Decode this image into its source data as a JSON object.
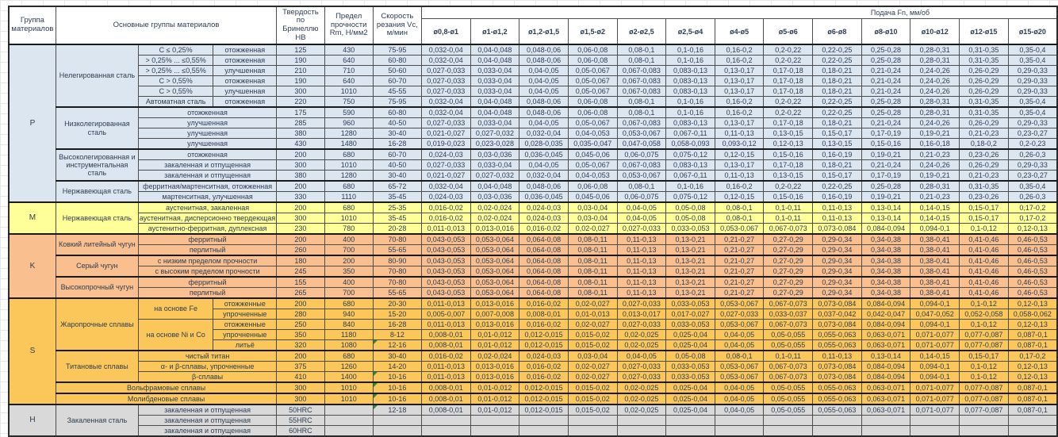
{
  "columns": {
    "group": "Группа материалов",
    "main": "Основные группы материалов",
    "hardness": "Твердость по Бринеллю HB",
    "strength": "Предел прочности Rm, Н/мм2",
    "speed": "Скорость резания Vc, м/мин",
    "feed": "Подача Fn, мм/об",
    "diameters": [
      "ø0,8-ø1",
      "ø1-ø1,2",
      "ø1,2-ø1,5",
      "ø1,5-ø2",
      "ø2-ø2,5",
      "ø2,5-ø4",
      "ø4-ø5",
      "ø5-ø6",
      "ø6-ø8",
      "ø8-ø10",
      "ø10-ø12",
      "ø12-ø15",
      "ø15-ø20"
    ]
  },
  "feed_patterns": {
    "F1": [
      "0,032-0,04",
      "0,04-0,048",
      "0,048-0,06",
      "0,06-0,08",
      "0,08-0,1",
      "0,1-0,16",
      "0,16-0,2",
      "0,2-0,22",
      "0,22-0,25",
      "0,25-0,28",
      "0,28-0,31",
      "0,31-0,35",
      "0,35-0,4"
    ],
    "F2": [
      "0,027-0,033",
      "0,033-0,04",
      "0,04-0,05",
      "0,05-0,067",
      "0,067-0,083",
      "0,083-0,13",
      "0,13-0,17",
      "0,17-0,18",
      "0,18-0,21",
      "0,21-0,24",
      "0,24-0,26",
      "0,26-0,29",
      "0,29-0,33"
    ],
    "F3": [
      "0,021-0,027",
      "0,027-0,032",
      "0,032-0,04",
      "0,04-0,053",
      "0,053-0,067",
      "0,067-0,11",
      "0,11-0,13",
      "0,13-0,15",
      "0,15-0,17",
      "0,17-0,19",
      "0,19-0,21",
      "0,21-0,23",
      "0,23-0,27"
    ],
    "F4": [
      "0,019-0,023",
      "0,023-0,028",
      "0,028-0,035",
      "0,035-0,047",
      "0,047-0,058",
      "0,058-0,093",
      "0,093-0,12",
      "0,12-0,13",
      "0,13-0,15",
      "0,15-0,16",
      "0,16-0,18",
      "0,18-0,2",
      "0,2-0,23"
    ],
    "F5": [
      "0,024-0,03",
      "0,03-0,036",
      "0,036-0,045",
      "0,045-0,06",
      "0,06-0,075",
      "0,075-0,12",
      "0,12-0,15",
      "0,15-0,16",
      "0,16-0,19",
      "0,19-0,21",
      "0,21-0,23",
      "0,23-0,26",
      "0,26-0,3"
    ],
    "F6": [
      "0,016-0,02",
      "0,02-0,024",
      "0,024-0,03",
      "0,03-0,04",
      "0,04-0,05",
      "0,05-0,08",
      "0,08-0,1",
      "0,1-0,11",
      "0,11-0,13",
      "0,13-0,14",
      "0,14-0,15",
      "0,15-0,17",
      "0,17-0,2"
    ],
    "F7": [
      "0,011-0,013",
      "0,013-0,016",
      "0,016-0,02",
      "0,02-0,027",
      "0,027-0,033",
      "0,033-0,053",
      "0,053-0,067",
      "0,067-0,073",
      "0,073-0,084",
      "0,084-0,094",
      "0,094-0,1",
      "0,1-0,12",
      "0,12-0,13"
    ],
    "F8": [
      "0,043-0,053",
      "0,053-0,064",
      "0,064-0,08",
      "0,08-0,11",
      "0,11-0,13",
      "0,13-0,21",
      "0,21-0,27",
      "0,27-0,29",
      "0,29-0,34",
      "0,34-0,38",
      "0,38-0,41",
      "0,41-0,46",
      "0,46-0,53"
    ],
    "F9": [
      "0,005-0,007",
      "0,007-0,008",
      "0,008-0,01",
      "0,01-0,013",
      "0,013-0,017",
      "0,017-0,027",
      "0,027-0,033",
      "0,033-0,037",
      "0,037-0,042",
      "0,042-0,047",
      "0,047-0,052",
      "0,052-0,058",
      "0,058-0,062"
    ],
    "F10": [
      "0,008-0,01",
      "0,01-0,012",
      "0,012-0,015",
      "0,015-0,02",
      "0,02-0,025",
      "0,025-0,04",
      "0,04-0,05",
      "0,05-0,055",
      "0,055-0,063",
      "0,063-0,071",
      "0,071-0,077",
      "0,077-0,087",
      "0,087-0,1"
    ],
    "E": [
      "",
      "",
      "",
      "",
      "",
      "",
      "",
      "",
      "",
      "",
      "",
      "",
      ""
    ]
  },
  "groups": [
    {
      "id": "P",
      "color": "#dce6f1",
      "rows": [
        {
          "cells": [
            {
              "t": "Нелегированная сталь",
              "rs": 6
            },
            {
              "t": "C ≤ 0,25%"
            },
            {
              "t": "отожженная"
            }
          ],
          "hb": "125",
          "rm": "430",
          "vc": "75-95",
          "feed": "F1"
        },
        {
          "cells": [
            {
              "t": "> 0,25% ... ≤0,55%"
            },
            {
              "t": "отожженная"
            }
          ],
          "hb": "190",
          "rm": "640",
          "vc": "60-80",
          "feed": "F1"
        },
        {
          "cells": [
            {
              "t": "> 0,25% ... ≤0,55%"
            },
            {
              "t": "улучшенная"
            }
          ],
          "hb": "210",
          "rm": "710",
          "vc": "50-60",
          "feed": "F2"
        },
        {
          "cells": [
            {
              "t": "C > 0,55%"
            },
            {
              "t": "отожженная"
            }
          ],
          "hb": "190",
          "rm": "640",
          "vc": "60-70",
          "feed": "F2"
        },
        {
          "cells": [
            {
              "t": "C > 0,55%"
            },
            {
              "t": "улучшенная"
            }
          ],
          "hb": "300",
          "rm": "1010",
          "vc": "45-55",
          "feed": "F2"
        },
        {
          "cells": [
            {
              "t": "Автоматная сталь"
            },
            {
              "t": "отожженная"
            }
          ],
          "hb": "220",
          "rm": "750",
          "vc": "75-95",
          "feed": "F1"
        },
        {
          "fs": 1,
          "cells": [
            {
              "t": "Низколегированная сталь",
              "rs": 4,
              "w": 1
            },
            {
              "t": "отожженная",
              "cs": 2
            }
          ],
          "hb": "175",
          "rm": "590",
          "vc": "60-80",
          "feed": "F1"
        },
        {
          "cells": [
            {
              "t": "улучшенная",
              "cs": 2
            }
          ],
          "hb": "285",
          "rm": "960",
          "vc": "40-50",
          "feed": "F2"
        },
        {
          "cells": [
            {
              "t": "улучшенная",
              "cs": 2
            }
          ],
          "hb": "380",
          "rm": "1280",
          "vc": "30-40",
          "feed": "F3"
        },
        {
          "cells": [
            {
              "t": "улучшенная",
              "cs": 2
            }
          ],
          "hb": "430",
          "rm": "1480",
          "vc": "16-28",
          "feed": "F4"
        },
        {
          "fs": 1,
          "cells": [
            {
              "t": "Высоколегированная и инструментальная сталь",
              "rs": 3,
              "w": 1
            },
            {
              "t": "отожженная",
              "cs": 2
            }
          ],
          "hb": "200",
          "rm": "680",
          "vc": "60-70",
          "feed": "F5"
        },
        {
          "cells": [
            {
              "t": "закаленная и отпущенная",
              "cs": 2
            }
          ],
          "hb": "300",
          "rm": "1010",
          "vc": "40-50",
          "feed": "F2"
        },
        {
          "cells": [
            {
              "t": "закаленная и отпущенная",
              "cs": 2
            }
          ],
          "hb": "380",
          "rm": "1280",
          "vc": "30-40",
          "feed": "F3"
        },
        {
          "fs": 1,
          "cells": [
            {
              "t": "Нержавеющая сталь",
              "rs": 2
            },
            {
              "t": "ферритная/мартенситная, отожженная",
              "cs": 2
            }
          ],
          "hb": "200",
          "rm": "680",
          "vc": "65-72",
          "feed": "F1"
        },
        {
          "cells": [
            {
              "t": "мартенситная, улучшенная",
              "cs": 2
            }
          ],
          "hb": "330",
          "rm": "1110",
          "vc": "35-45",
          "feed": "F5"
        }
      ]
    },
    {
      "id": "M",
      "color": "#ffff99",
      "rows": [
        {
          "cells": [
            {
              "t": "Нержавеющая сталь",
              "rs": 3
            },
            {
              "t": "аустенитная, закаленная",
              "cs": 2
            }
          ],
          "hb": "200",
          "rm": "680",
          "vc": "25-35",
          "feed": "F6"
        },
        {
          "cells": [
            {
              "t": "аустенитная, дисперсионно твердеющая",
              "cs": 2
            }
          ],
          "hb": "300",
          "rm": "1010",
          "vc": "35-45",
          "feed": "F6"
        },
        {
          "cells": [
            {
              "t": "аустенитно-ферритная, дуплексная",
              "cs": 2
            }
          ],
          "hb": "230",
          "rm": "780",
          "vc": "20-28",
          "feed": "F7"
        }
      ]
    },
    {
      "id": "K",
      "color": "#fabf8f",
      "rows": [
        {
          "cells": [
            {
              "t": "Ковкий литейный чугун",
              "rs": 2
            },
            {
              "t": "ферритный",
              "cs": 2
            }
          ],
          "hb": "200",
          "rm": "400",
          "vc": "70-80",
          "feed": "F8"
        },
        {
          "cells": [
            {
              "t": "перлитный",
              "cs": 2
            }
          ],
          "hb": "260",
          "rm": "700",
          "vc": "55-65",
          "feed": "F8"
        },
        {
          "fs": 1,
          "cells": [
            {
              "t": "Серый чугун",
              "rs": 2
            },
            {
              "t": "с низким пределом прочности",
              "cs": 2
            }
          ],
          "hb": "180",
          "rm": "200",
          "vc": "80-90",
          "feed": "F8"
        },
        {
          "cells": [
            {
              "t": "с высоким пределом прочности",
              "cs": 2
            }
          ],
          "hb": "245",
          "rm": "350",
          "vc": "70-80",
          "feed": "F8"
        },
        {
          "fs": 1,
          "cells": [
            {
              "t": "Высокопрочный чугун",
              "rs": 2
            },
            {
              "t": "ферритный",
              "cs": 2
            }
          ],
          "hb": "155",
          "rm": "400",
          "vc": "70-80",
          "feed": "F8"
        },
        {
          "cells": [
            {
              "t": "перлитный",
              "cs": 2
            }
          ],
          "hb": "265",
          "rm": "700",
          "vc": "55-65",
          "feed": "F8"
        }
      ]
    },
    {
      "id": "S",
      "color": "#fbc75b",
      "rows": [
        {
          "cells": [
            {
              "t": "Жаропрочные сплавы",
              "rs": 5
            },
            {
              "t": "на основе Fe",
              "rs": 2
            },
            {
              "t": "отожженные"
            }
          ],
          "hb": "200",
          "rm": "680",
          "vc": "20-30",
          "feed": "F7"
        },
        {
          "cells": [
            {
              "t": "упрочненные"
            }
          ],
          "hb": "280",
          "rm": "940",
          "vc": "15-20",
          "feed": "F9"
        },
        {
          "cells": [
            {
              "t": "на основе Ni и Co",
              "rs": 3
            },
            {
              "t": "отожженные"
            }
          ],
          "hb": "250",
          "rm": "840",
          "vc": "16-28",
          "feed": "F7"
        },
        {
          "cells": [
            {
              "t": "упрочненные"
            }
          ],
          "hb": "350",
          "rm": "1180",
          "vc": "8-12",
          "feed": "F10"
        },
        {
          "cells": [
            {
              "t": "литьё"
            }
          ],
          "hb": "320",
          "rm": "1080",
          "vc": "12-16",
          "f": 1,
          "feed": "F10"
        },
        {
          "fs": 1,
          "cells": [
            {
              "t": "Титановые сплавы",
              "rs": 3
            },
            {
              "t": "чистый титан",
              "cs": 2
            }
          ],
          "hb": "200",
          "rm": "680",
          "vc": "30-40",
          "feed": "F6"
        },
        {
          "cells": [
            {
              "t": "α- и β-сплавы, упрочненные",
              "cs": 2
            }
          ],
          "hb": "375",
          "rm": "1260",
          "vc": "14-20",
          "feed": "F7"
        },
        {
          "cells": [
            {
              "t": "β-сплавы",
              "cs": 2
            }
          ],
          "hb": "410",
          "rm": "1400",
          "vc": "10-16",
          "f": 1,
          "feed": "F7"
        },
        {
          "fs": 1,
          "cells": [
            {
              "t": "Вольфрамовые сплавы",
              "cs": 3
            }
          ],
          "hb": "300",
          "rm": "1010",
          "vc": "10-16",
          "f": 1,
          "feed": "F10"
        },
        {
          "fs": 1,
          "cells": [
            {
              "t": "Молибденовые сплавы",
              "cs": 3
            }
          ],
          "hb": "300",
          "rm": "1010",
          "vc": "10-16",
          "f": 1,
          "feed": "F10"
        }
      ]
    },
    {
      "id": "H",
      "color": "#d9d9d9",
      "rows": [
        {
          "cells": [
            {
              "t": "Закаленная сталь",
              "rs": 3
            },
            {
              "t": "закаленная и отпущенная",
              "cs": 2
            }
          ],
          "hb": "50HRC",
          "rm": "",
          "vc": "12-18",
          "f": 1,
          "feed": "F10"
        },
        {
          "cells": [
            {
              "t": "закаленная и отпущенная",
              "cs": 2
            }
          ],
          "hb": "55HRC",
          "rm": "",
          "vc": "",
          "feed": "E"
        },
        {
          "cells": [
            {
              "t": "закаленная и отпущенная",
              "cs": 2
            }
          ],
          "hb": "60HRC",
          "rm": "",
          "vc": "",
          "feed": "E"
        }
      ]
    }
  ]
}
